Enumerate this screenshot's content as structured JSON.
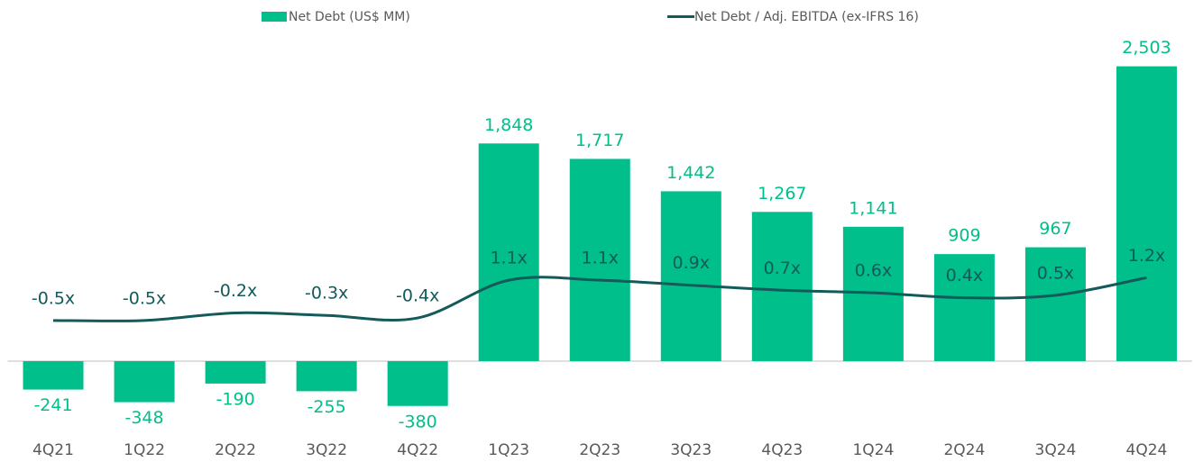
{
  "chart_data": {
    "type": "bar_line",
    "categories": [
      "4Q21",
      "1Q22",
      "2Q22",
      "3Q22",
      "4Q22",
      "1Q23",
      "2Q23",
      "3Q23",
      "4Q23",
      "1Q24",
      "2Q24",
      "3Q24",
      "4Q24"
    ],
    "series": [
      {
        "name": "Net Debt (US$ MM)",
        "type": "bar",
        "color": "#00bf8a",
        "values": [
          -241,
          -348,
          -190,
          -255,
          -380,
          1848,
          1717,
          1442,
          1267,
          1141,
          909,
          967,
          2503
        ],
        "value_labels": [
          "-241",
          "-348",
          "-190",
          "-255",
          "-380",
          "1,848",
          "1,717",
          "1,442",
          "1,267",
          "1,141",
          "909",
          "967",
          "2,503"
        ]
      },
      {
        "name": "Net Debt / Adj. EBITDA (ex-IFRS 16)",
        "type": "line",
        "axis": "y2",
        "color": "#135a5a",
        "values": [
          -0.5,
          -0.5,
          -0.2,
          -0.3,
          -0.4,
          1.1,
          1.1,
          0.9,
          0.7,
          0.6,
          0.4,
          0.5,
          1.2
        ],
        "value_labels": [
          "-0.5x",
          "-0.5x",
          "-0.2x",
          "-0.3x",
          "-0.4x",
          "1.1x",
          "1.1x",
          "0.9x",
          "0.7x",
          "0.6x",
          "0.4x",
          "0.5x",
          "1.2x"
        ]
      }
    ],
    "ylim": [
      -680,
      2760
    ],
    "y2lim": [
      -5.3,
      10.8
    ]
  }
}
